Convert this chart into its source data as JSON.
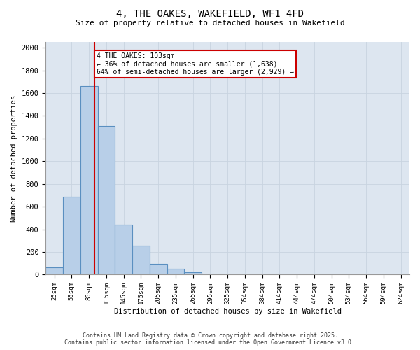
{
  "title": "4, THE OAKES, WAKEFIELD, WF1 4FD",
  "subtitle": "Size of property relative to detached houses in Wakefield",
  "xlabel": "Distribution of detached houses by size in Wakefield",
  "ylabel": "Number of detached properties",
  "bin_labels": [
    "25sqm",
    "55sqm",
    "85sqm",
    "115sqm",
    "145sqm",
    "175sqm",
    "205sqm",
    "235sqm",
    "265sqm",
    "295sqm",
    "325sqm",
    "354sqm",
    "384sqm",
    "414sqm",
    "444sqm",
    "474sqm",
    "504sqm",
    "534sqm",
    "564sqm",
    "594sqm",
    "624sqm"
  ],
  "bar_values": [
    65,
    690,
    1660,
    1310,
    440,
    255,
    95,
    50,
    20,
    5,
    0,
    0,
    0,
    0,
    0,
    0,
    0,
    0,
    0,
    0,
    0
  ],
  "bar_color": "#b8cfe8",
  "bar_edge_color": "#5a8fc0",
  "annotation_text": "4 THE OAKES: 103sqm\n← 36% of detached houses are smaller (1,638)\n64% of semi-detached houses are larger (2,929) →",
  "annotation_box_color": "#ffffff",
  "annotation_box_edge": "#cc0000",
  "red_line_color": "#cc0000",
  "grid_color": "#c8d4e0",
  "background_color": "#dde6f0",
  "footer_line1": "Contains HM Land Registry data © Crown copyright and database right 2025.",
  "footer_line2": "Contains public sector information licensed under the Open Government Licence v3.0.",
  "ylim": [
    0,
    2050
  ],
  "yticks": [
    0,
    200,
    400,
    600,
    800,
    1000,
    1200,
    1400,
    1600,
    1800,
    2000
  ],
  "red_line_x": 2.33
}
